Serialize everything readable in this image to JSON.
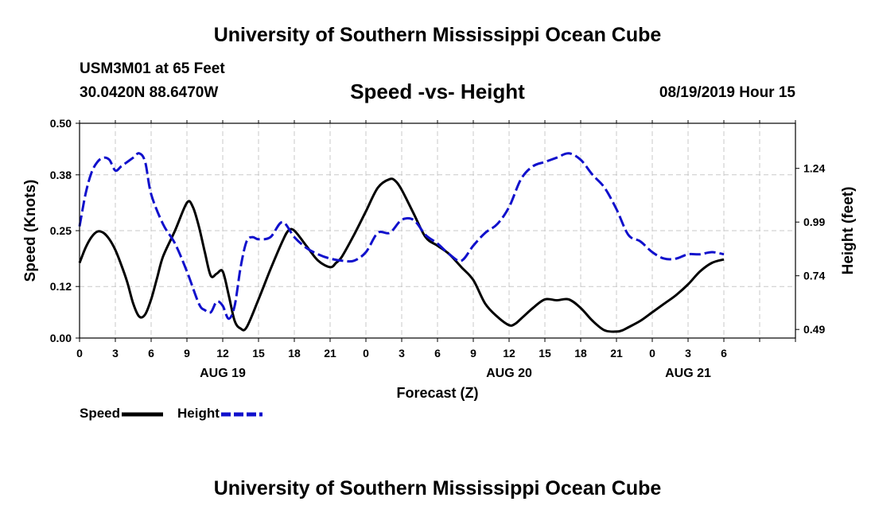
{
  "header": {
    "title_top": "University of Southern Mississippi Ocean Cube",
    "title_bottom": "University of Southern Mississippi Ocean Cube",
    "station": "USM3M01 at 65 Feet",
    "coordinates": "30.0420N 88.6470W",
    "date_label": "08/19/2019 Hour 15"
  },
  "legend": {
    "speed_label": "Speed",
    "height_label": "Height"
  },
  "colors": {
    "speed": "#000000",
    "height": "#1010cc",
    "grid": "#c8c8c8"
  },
  "chart_data": {
    "type": "line",
    "title": "Speed -vs- Height",
    "xlabel": "Forecast (Z)",
    "ylabel": "Speed (Knots)",
    "y2label": "Height (feet)",
    "xlim": [
      0,
      60
    ],
    "ylim": [
      0,
      0.5
    ],
    "y2lim": [
      0.45,
      1.45
    ],
    "x_ticks": [
      0,
      3,
      6,
      9,
      12,
      15,
      18,
      21,
      24,
      27,
      30,
      33,
      36,
      39,
      42,
      45,
      48,
      51,
      54,
      57,
      60
    ],
    "x_tick_labels": [
      "0",
      "3",
      "6",
      "9",
      "12",
      "15",
      "18",
      "21",
      "0",
      "3",
      "6",
      "9",
      "12",
      "15",
      "18",
      "21",
      "0",
      "3",
      "6"
    ],
    "x_tick_label_positions": [
      0,
      3,
      6,
      9,
      12,
      15,
      18,
      21,
      24,
      27,
      30,
      33,
      36,
      39,
      42,
      45,
      48,
      51,
      54
    ],
    "date_labels": [
      {
        "x": 12,
        "label": "AUG 19"
      },
      {
        "x": 36,
        "label": "AUG 20"
      },
      {
        "x": 51,
        "label": "AUG 21"
      }
    ],
    "y_ticks": [
      0.0,
      0.12,
      0.25,
      0.38,
      0.5
    ],
    "y_tick_labels": [
      "0.00",
      "0.12",
      "0.25",
      "0.38",
      "0.50"
    ],
    "y2_ticks": [
      0.49,
      0.74,
      0.99,
      1.24
    ],
    "y2_tick_labels": [
      "0.49",
      "0.74",
      "0.99",
      "1.24"
    ],
    "series": [
      {
        "name": "Speed",
        "axis": "left",
        "style": "solid",
        "x": [
          0,
          0.5,
          1,
          1.5,
          2,
          2.5,
          3,
          3.5,
          4,
          4.5,
          5,
          5.5,
          6,
          6.5,
          7,
          8,
          9,
          9.5,
          10,
          10.5,
          11,
          11.5,
          12,
          12.5,
          13,
          13.5,
          14,
          15,
          16,
          17,
          17.5,
          18,
          19,
          20,
          21,
          21.5,
          22,
          23,
          24,
          25,
          26,
          26.5,
          27,
          28,
          29,
          30,
          31,
          32,
          33,
          34,
          35,
          36,
          36.5,
          37,
          38,
          39,
          40,
          41,
          42,
          43,
          44,
          45,
          45.5,
          46,
          47,
          48,
          49,
          50,
          51,
          52,
          53,
          54
        ],
        "values": [
          0.175,
          0.21,
          0.235,
          0.248,
          0.245,
          0.23,
          0.205,
          0.17,
          0.13,
          0.08,
          0.05,
          0.055,
          0.09,
          0.14,
          0.19,
          0.25,
          0.315,
          0.305,
          0.26,
          0.2,
          0.145,
          0.15,
          0.155,
          0.1,
          0.04,
          0.022,
          0.025,
          0.09,
          0.16,
          0.225,
          0.25,
          0.25,
          0.215,
          0.18,
          0.165,
          0.175,
          0.19,
          0.24,
          0.295,
          0.35,
          0.37,
          0.365,
          0.345,
          0.29,
          0.235,
          0.215,
          0.195,
          0.165,
          0.135,
          0.08,
          0.05,
          0.03,
          0.033,
          0.045,
          0.07,
          0.09,
          0.088,
          0.09,
          0.07,
          0.04,
          0.018,
          0.015,
          0.018,
          0.025,
          0.04,
          0.06,
          0.08,
          0.1,
          0.125,
          0.155,
          0.175,
          0.183
        ]
      },
      {
        "name": "Height",
        "axis": "right",
        "style": "dashed",
        "x": [
          0,
          0.5,
          1,
          1.5,
          2,
          2.5,
          3,
          3.5,
          4,
          4.5,
          5,
          5.5,
          6,
          7,
          8,
          9,
          10,
          10.5,
          11,
          11.5,
          12,
          12.5,
          13,
          13.5,
          14,
          14.5,
          15,
          16,
          17,
          18,
          19,
          20,
          21,
          22,
          23,
          24,
          25,
          26,
          27,
          28,
          29,
          30,
          31,
          32,
          33,
          34,
          35,
          36,
          37,
          38,
          39,
          40,
          41,
          42,
          43,
          44,
          45,
          46,
          47,
          48,
          49,
          50,
          51,
          52,
          53,
          54
        ],
        "values": [
          0.97,
          1.12,
          1.22,
          1.27,
          1.29,
          1.28,
          1.23,
          1.25,
          1.27,
          1.29,
          1.31,
          1.27,
          1.12,
          0.98,
          0.89,
          0.76,
          0.61,
          0.58,
          0.57,
          0.62,
          0.6,
          0.54,
          0.6,
          0.78,
          0.9,
          0.92,
          0.91,
          0.92,
          0.99,
          0.92,
          0.87,
          0.84,
          0.82,
          0.81,
          0.81,
          0.85,
          0.94,
          0.94,
          1.0,
          1.0,
          0.93,
          0.89,
          0.84,
          0.81,
          0.88,
          0.94,
          0.98,
          1.06,
          1.19,
          1.25,
          1.27,
          1.29,
          1.31,
          1.28,
          1.21,
          1.15,
          1.05,
          0.93,
          0.9,
          0.85,
          0.82,
          0.82,
          0.84,
          0.84,
          0.85,
          0.84
        ]
      }
    ]
  }
}
